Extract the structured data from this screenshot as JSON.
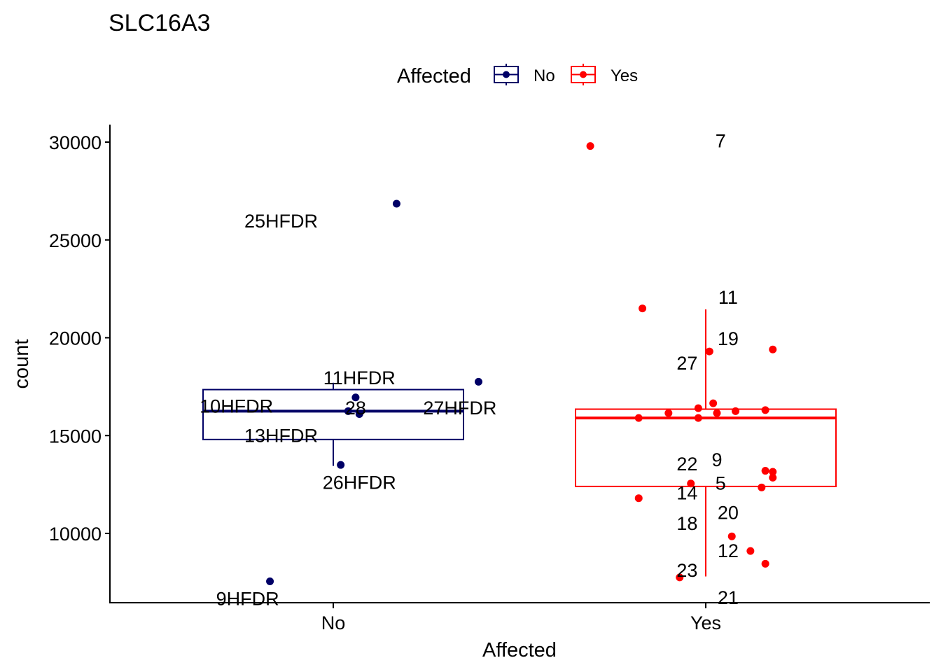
{
  "chart_data": {
    "type": "boxplot",
    "title": "SLC16A3",
    "xlabel": "Affected",
    "ylabel": "count",
    "ylim": [
      6500,
      31000
    ],
    "yticks": [
      10000,
      15000,
      20000,
      25000,
      30000
    ],
    "categories": [
      "No",
      "Yes"
    ],
    "legend": {
      "title": "Affected",
      "position": "top",
      "entries": [
        {
          "label": "No",
          "color": "#000066"
        },
        {
          "label": "Yes",
          "color": "#ff0000"
        }
      ]
    },
    "series": [
      {
        "name": "No",
        "color": "#000066",
        "box": {
          "lower_whisker": 13450,
          "q1": 14800,
          "median": 16250,
          "q3": 17350,
          "upper_whisker": 17700
        },
        "points": [
          {
            "x": -0.17,
            "y": 7550,
            "label": "9HFDR"
          },
          {
            "x": 0.02,
            "y": 13500,
            "label": "26HFDR"
          },
          {
            "x": 0.04,
            "y": 16250,
            "label": ""
          },
          {
            "x": 0.06,
            "y": 16950,
            "label": ""
          },
          {
            "x": 0.07,
            "y": 16100,
            "label": ""
          },
          {
            "x": 0.17,
            "y": 26850,
            "label": "25HFDR"
          },
          {
            "x": 0.39,
            "y": 17750,
            "label": ""
          }
        ],
        "labels": [
          {
            "text": "25HFDR",
            "x": -0.14,
            "y": 25950
          },
          {
            "text": "11HFDR",
            "x": 0.07,
            "y": 17950
          },
          {
            "text": "10HFDR",
            "x": -0.26,
            "y": 16500
          },
          {
            "text": "28",
            "x": 0.06,
            "y": 16400
          },
          {
            "text": "27HFDR",
            "x": 0.34,
            "y": 16400
          },
          {
            "text": "13HFDR",
            "x": -0.14,
            "y": 15000
          },
          {
            "text": "26HFDR",
            "x": 0.07,
            "y": 12600
          },
          {
            "text": "9HFDR",
            "x": -0.23,
            "y": 6650
          }
        ]
      },
      {
        "name": "Yes",
        "color": "#ff0000",
        "box": {
          "lower_whisker": 7800,
          "q1": 12400,
          "median": 15900,
          "q3": 16350,
          "upper_whisker": 21450
        },
        "points": [
          {
            "x": -0.31,
            "y": 29800,
            "label": "7"
          },
          {
            "x": -0.17,
            "y": 21500,
            "label": "11"
          },
          {
            "x": 0.01,
            "y": 19300,
            "label": "19"
          },
          {
            "x": 0.18,
            "y": 19400,
            "label": ""
          },
          {
            "x": 0.02,
            "y": 16650,
            "label": ""
          },
          {
            "x": -0.02,
            "y": 16400,
            "label": ""
          },
          {
            "x": 0.03,
            "y": 16150,
            "label": ""
          },
          {
            "x": 0.08,
            "y": 16250,
            "label": ""
          },
          {
            "x": 0.16,
            "y": 16300,
            "label": ""
          },
          {
            "x": -0.1,
            "y": 16150,
            "label": ""
          },
          {
            "x": -0.18,
            "y": 15900,
            "label": ""
          },
          {
            "x": -0.02,
            "y": 15900,
            "label": ""
          },
          {
            "x": 0.16,
            "y": 13200,
            "label": ""
          },
          {
            "x": 0.18,
            "y": 13150,
            "label": ""
          },
          {
            "x": 0.18,
            "y": 12850,
            "label": ""
          },
          {
            "x": 0.15,
            "y": 12350,
            "label": ""
          },
          {
            "x": -0.04,
            "y": 12550,
            "label": "5"
          },
          {
            "x": -0.18,
            "y": 11800,
            "label": "14"
          },
          {
            "x": 0.07,
            "y": 9850,
            "label": "18"
          },
          {
            "x": 0.12,
            "y": 9100,
            "label": "12"
          },
          {
            "x": 0.16,
            "y": 8450,
            "label": ""
          },
          {
            "x": -0.07,
            "y": 7750,
            "label": "23"
          }
        ],
        "labels": [
          {
            "text": "7",
            "x": 0.04,
            "y": 30050
          },
          {
            "text": "11",
            "x": 0.06,
            "y": 22050
          },
          {
            "text": "19",
            "x": 0.06,
            "y": 19950
          },
          {
            "text": "27",
            "x": -0.05,
            "y": 18700
          },
          {
            "text": "22",
            "x": -0.05,
            "y": 13550
          },
          {
            "text": "9",
            "x": 0.03,
            "y": 13750
          },
          {
            "text": "5",
            "x": 0.04,
            "y": 12550
          },
          {
            "text": "14",
            "x": -0.05,
            "y": 12050
          },
          {
            "text": "20",
            "x": 0.06,
            "y": 11050
          },
          {
            "text": "18",
            "x": -0.05,
            "y": 10500
          },
          {
            "text": "12",
            "x": 0.06,
            "y": 9100
          },
          {
            "text": "23",
            "x": -0.05,
            "y": 8100
          },
          {
            "text": "21",
            "x": 0.06,
            "y": 6700
          }
        ]
      }
    ]
  }
}
